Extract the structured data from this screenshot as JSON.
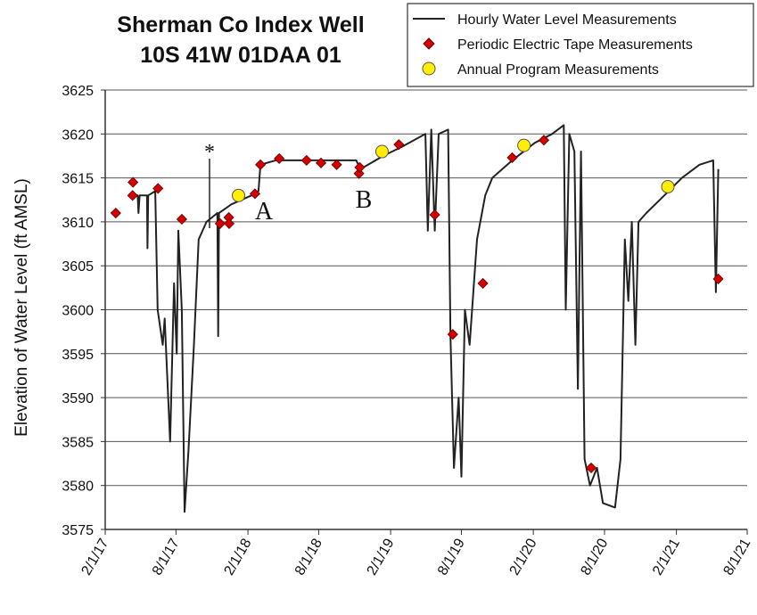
{
  "chart_data": {
    "type": "line",
    "title": [
      "Sherman Co Index Well",
      "10S 41W 01DAA 01"
    ],
    "y_label": "Elevation of Water Level (ft AMSL)",
    "annotations": [
      "*",
      "A",
      "B"
    ],
    "legend": "top-right",
    "grid": true,
    "xlim": [
      "2017-02-01",
      "2021-08-01"
    ],
    "xticks": [
      {
        "value": "2017-02-01",
        "label": "2/1/17"
      },
      {
        "value": "2017-08-01",
        "label": "8/1/17"
      },
      {
        "value": "2018-02-01",
        "label": "2/1/18"
      },
      {
        "value": "2018-08-01",
        "label": "8/1/18"
      },
      {
        "value": "2019-02-01",
        "label": "2/1/19"
      },
      {
        "value": "2019-08-01",
        "label": "8/1/19"
      },
      {
        "value": "2020-02-01",
        "label": "2/1/20"
      },
      {
        "value": "2020-08-01",
        "label": "8/1/20"
      },
      {
        "value": "2021-02-01",
        "label": "2/1/21"
      },
      {
        "value": "2021-08-01",
        "label": "8/1/21"
      }
    ],
    "ylim": [
      3575,
      3625
    ],
    "yticks": [
      3575,
      3580,
      3585,
      3590,
      3595,
      3600,
      3605,
      3610,
      3615,
      3620,
      3625
    ],
    "series": [
      {
        "name": "Hourly Water Level Measurements",
        "marker": "line",
        "color": "#222222",
        "x": [
          "2017-04-01",
          "2017-04-25",
          "2017-04-27",
          "2017-04-30",
          "2017-05-19",
          "2017-05-20",
          "2017-05-22",
          "2017-06-09",
          "2017-06-15",
          "2017-06-28",
          "2017-07-03",
          "2017-07-17",
          "2017-07-27",
          "2017-08-03",
          "2017-08-07",
          "2017-08-16",
          "2017-08-23",
          "2017-09-02",
          "2017-09-16",
          "2017-09-28",
          "2017-10-18",
          "2017-11-15",
          "2017-11-17",
          "2017-11-19",
          "2017-12-21",
          "2018-02-10",
          "2018-02-28",
          "2018-03-05",
          "2018-04-13",
          "2018-11-05",
          "2018-11-16",
          "2019-01-13",
          "2019-02-28",
          "2019-05-01",
          "2019-05-07",
          "2019-05-16",
          "2019-05-25",
          "2019-06-04",
          "2019-06-28",
          "2019-07-04",
          "2019-07-13",
          "2019-07-25",
          "2019-08-01",
          "2019-08-10",
          "2019-08-22",
          "2019-09-10",
          "2019-10-01",
          "2019-10-19",
          "2019-12-09",
          "2020-02-05",
          "2020-03-20",
          "2020-04-19",
          "2020-04-24",
          "2020-05-03",
          "2020-05-16",
          "2020-05-25",
          "2020-06-02",
          "2020-06-11",
          "2020-06-25",
          "2020-07-13",
          "2020-07-28",
          "2020-08-28",
          "2020-09-11",
          "2020-09-22",
          "2020-10-01",
          "2020-10-10",
          "2020-10-19",
          "2020-10-27",
          "2020-11-16",
          "2021-01-01",
          "2021-02-15",
          "2021-04-01",
          "2021-05-06",
          "2021-05-13",
          "2021-05-19"
        ],
        "values": [
          3613,
          3613,
          3611,
          3613,
          3613,
          3607,
          3613,
          3613.5,
          3600,
          3596,
          3599,
          3585,
          3603,
          3595,
          3609,
          3600,
          3577,
          3584,
          3596,
          3608,
          3610,
          3611,
          3597,
          3611,
          3612,
          3613,
          3613.5,
          3616.5,
          3617,
          3617,
          3616,
          3617.5,
          3618.5,
          3620,
          3609,
          3620.5,
          3609,
          3620,
          3620.5,
          3597,
          3582,
          3590,
          3581,
          3600,
          3596,
          3608,
          3613,
          3615,
          3617,
          3619,
          3620,
          3621,
          3600,
          3620,
          3618,
          3591,
          3618,
          3583,
          3580,
          3582,
          3578,
          3577.5,
          3583,
          3608,
          3601,
          3610,
          3596,
          3610,
          3611,
          3613,
          3615,
          3616.5,
          3617,
          3602,
          3616
        ]
      },
      {
        "name": "Periodic Electric Tape Measurements",
        "marker": "diamond",
        "color": "#d40000",
        "x": [
          "2017-02-28",
          "2017-04-12",
          "2017-04-13",
          "2017-06-16",
          "2017-08-16",
          "2017-11-22",
          "2017-12-14",
          "2017-12-15",
          "2018-02-19",
          "2018-03-05",
          "2018-04-22",
          "2018-07-01",
          "2018-08-07",
          "2018-09-16",
          "2018-11-12",
          "2018-11-14",
          "2019-02-22",
          "2019-05-25",
          "2019-07-10",
          "2019-09-25",
          "2019-12-09",
          "2020-02-28",
          "2020-06-28",
          "2021-05-19"
        ],
        "values": [
          3611,
          3613,
          3614.5,
          3613.8,
          3610.3,
          3609.8,
          3610.5,
          3609.8,
          3613.2,
          3616.5,
          3617.2,
          3617,
          3616.7,
          3616.5,
          3615.5,
          3616.2,
          3618.8,
          3610.8,
          3597.2,
          3603,
          3617.3,
          3619.3,
          3582,
          3603.5
        ]
      },
      {
        "name": "Annual Program Measurements",
        "marker": "circle",
        "color": "#ffee00",
        "x": [
          "2018-01-08",
          "2019-01-10",
          "2020-01-08",
          "2021-01-10"
        ],
        "values": [
          3613,
          3618,
          3618.7,
          3614
        ]
      }
    ]
  }
}
